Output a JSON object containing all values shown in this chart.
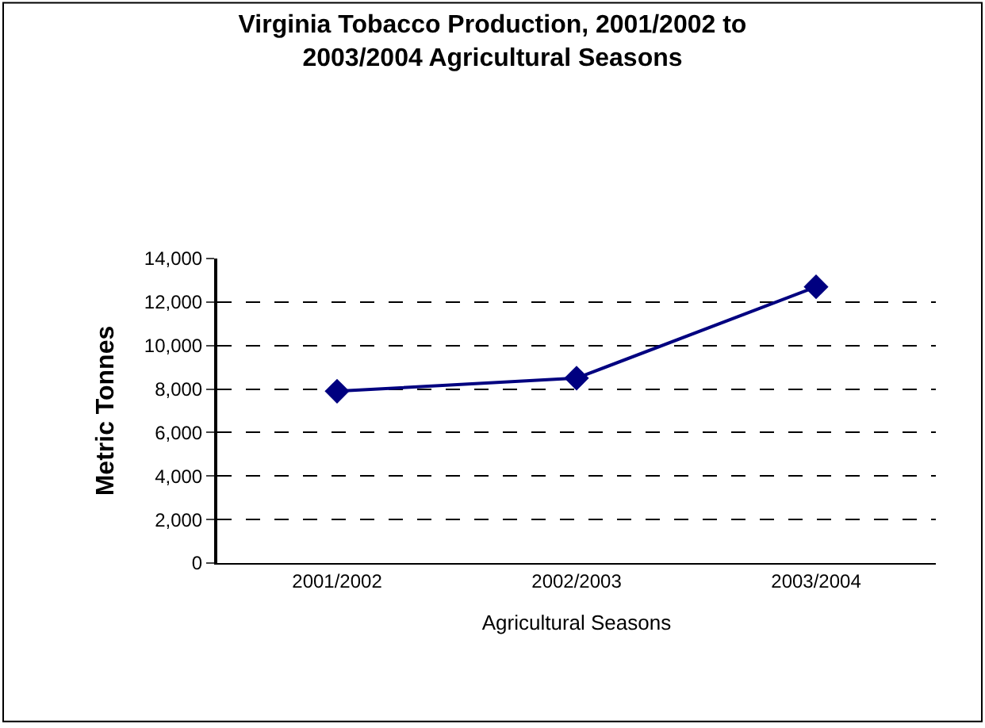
{
  "chart_data": {
    "type": "line",
    "title": "Virginia Tobacco Production, 2001/2002 to 2003/2004 Agricultural Seasons",
    "xlabel": "Agricultural Seasons",
    "ylabel": "Metric Tonnes",
    "categories": [
      "2001/2002",
      "2002/2003",
      "2003/2004"
    ],
    "series": [
      {
        "color": "#000080",
        "values": [
          7900,
          8500,
          12700
        ]
      }
    ],
    "ylim": [
      0,
      14000
    ],
    "yticks": [
      {
        "value": 0,
        "label": "0"
      },
      {
        "value": 2000,
        "label": "2,000"
      },
      {
        "value": 4000,
        "label": "4,000"
      },
      {
        "value": 6000,
        "label": "6,000"
      },
      {
        "value": 8000,
        "label": "8,000"
      },
      {
        "value": 10000,
        "label": "10,000"
      },
      {
        "value": 12000,
        "label": "12,000"
      },
      {
        "value": 14000,
        "label": "14,000"
      }
    ],
    "grid": "y",
    "marker": "diamond",
    "line_style": "solid",
    "legend": false
  }
}
